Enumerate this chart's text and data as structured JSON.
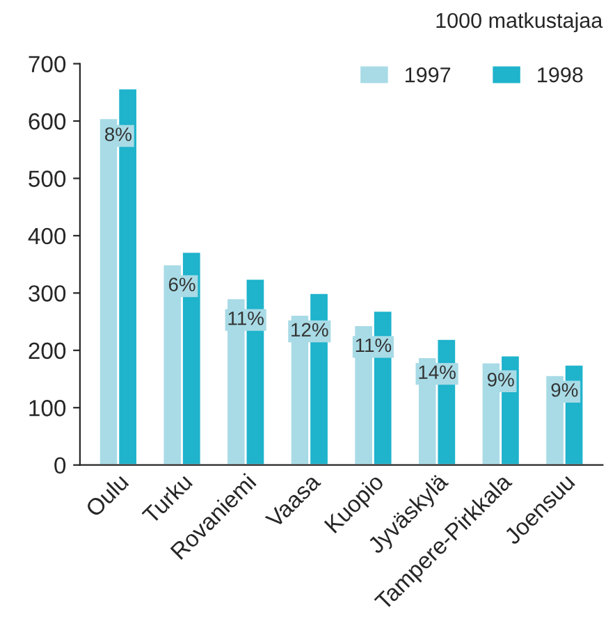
{
  "chart_data": {
    "type": "bar",
    "title": "1000 matkustajaa",
    "categories": [
      "Oulu",
      "Turku",
      "Rovaniemi",
      "Vaasa",
      "Kuopio",
      "Jyväskylä",
      "Tampere-Pirkkala",
      "Joensuu"
    ],
    "series": [
      {
        "name": "1997",
        "color": "#a8dbe6",
        "values": [
          605,
          350,
          291,
          262,
          244,
          188,
          179,
          157
        ]
      },
      {
        "name": "1998",
        "color": "#1fb3cc",
        "values": [
          657,
          372,
          325,
          300,
          269,
          220,
          191,
          175
        ]
      }
    ],
    "ylim": [
      0,
      700
    ],
    "yticks": [
      0,
      100,
      200,
      300,
      400,
      500,
      600,
      700
    ],
    "grid": false,
    "legend": "top right",
    "annotations": [
      {
        "text": "8%",
        "x": "Oulu",
        "y": 574
      },
      {
        "text": "6%",
        "x": "Turku",
        "y": 312
      },
      {
        "text": "11%",
        "x": "Rovaniemi",
        "y": 253
      },
      {
        "text": "12%",
        "x": "Vaasa",
        "y": 233
      },
      {
        "text": "11%",
        "x": "Kuopio",
        "y": 206
      },
      {
        "text": "14%",
        "x": "Jyväskylä",
        "y": 159
      },
      {
        "text": "9%",
        "x": "Tampere-Pirkkala",
        "y": 146
      },
      {
        "text": "9%",
        "x": "Joensuu",
        "y": 128
      }
    ]
  }
}
